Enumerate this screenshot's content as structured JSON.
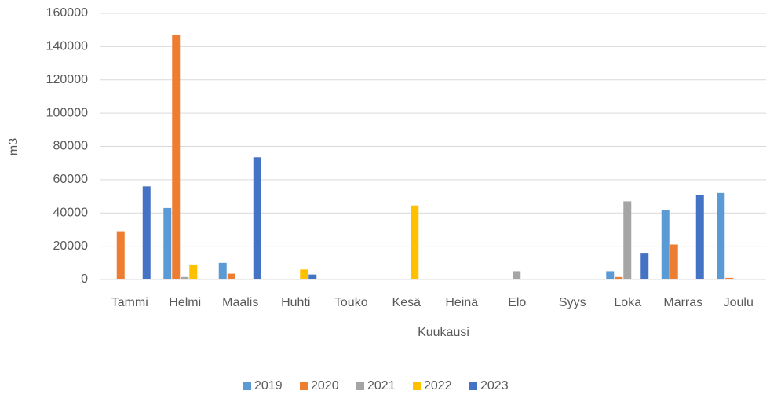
{
  "chart_data": {
    "type": "bar",
    "x_label": "Kuukausi",
    "y_label": "m3",
    "categories": [
      "Tammi",
      "Helmi",
      "Maalis",
      "Huhti",
      "Touko",
      "Kesä",
      "Heinä",
      "Elo",
      "Syys",
      "Loka",
      "Marras",
      "Joulu"
    ],
    "series": [
      {
        "name": "2019",
        "color": "#5b9bd5",
        "values": [
          0,
          43000,
          10000,
          0,
          0,
          0,
          0,
          0,
          0,
          5000,
          42000,
          52000
        ]
      },
      {
        "name": "2020",
        "color": "#ed7d31",
        "values": [
          29000,
          147000,
          3500,
          0,
          0,
          0,
          0,
          0,
          0,
          1500,
          21000,
          1000
        ]
      },
      {
        "name": "2021",
        "color": "#a5a5a5",
        "values": [
          0,
          1500,
          500,
          0,
          0,
          0,
          0,
          5000,
          0,
          47000,
          0,
          0
        ]
      },
      {
        "name": "2022",
        "color": "#ffc000",
        "values": [
          0,
          9000,
          0,
          6000,
          0,
          44500,
          0,
          0,
          0,
          0,
          0,
          0
        ]
      },
      {
        "name": "2023",
        "color": "#4472c4",
        "values": [
          56000,
          0,
          73500,
          3000,
          0,
          0,
          0,
          0,
          0,
          16000,
          50500,
          0
        ]
      }
    ],
    "ylim": [
      0,
      160000
    ],
    "yticks": [
      0,
      20000,
      40000,
      60000,
      80000,
      100000,
      120000,
      140000,
      160000
    ],
    "grid": true,
    "legend": "bottom"
  }
}
